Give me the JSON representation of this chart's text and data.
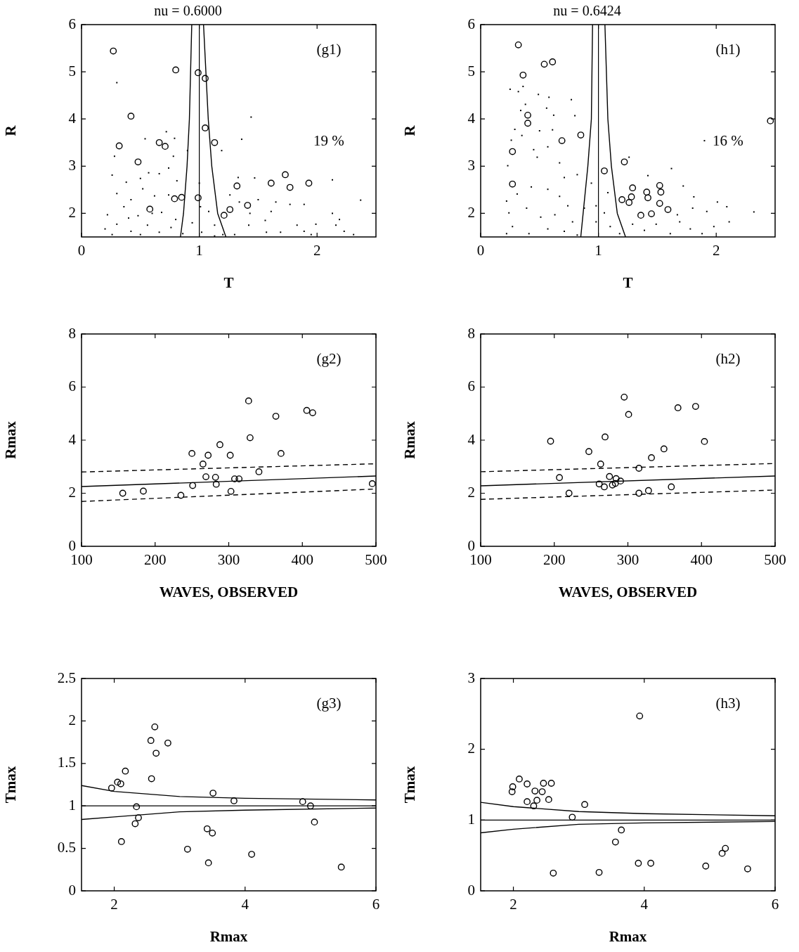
{
  "chart_data": [
    {
      "type": "scatter",
      "title": "nu = 0.6000",
      "xlabel": "T",
      "ylabel": "R",
      "xlim": [
        0,
        2.5
      ],
      "xticks": [
        0,
        1,
        2
      ],
      "ylim": [
        1.5,
        6
      ],
      "yticks": [
        2,
        3,
        4,
        5,
        6
      ],
      "annotations": [
        "(g1)",
        "19 %"
      ],
      "ref_lines": [
        {
          "axis": "x",
          "value": 1,
          "color": "#000000"
        }
      ],
      "series": [
        {
          "marker": "square",
          "color": "#000000",
          "x": [
            0.3,
            1.44,
            1.36,
            0.54,
            0.72,
            0.79,
            1.19,
            2.13,
            2.37,
            1.47,
            1.33,
            0.28,
            0.26,
            0.38,
            0.5,
            0.57,
            0.66,
            0.74,
            0.81,
            0.78,
            0.9,
            0.3,
            0.42,
            0.52,
            0.62,
            0.74,
            0.36,
            0.22,
            0.48,
            0.68,
            0.8,
            0.2,
            0.3,
            0.42,
            0.56,
            0.66,
            0.76,
            0.26,
            0.5,
            0.86,
            0.94,
            1.02,
            1.0,
            1.01,
            1.08,
            1.13,
            1.26,
            1.34,
            1.3,
            1.42,
            1.5,
            1.56,
            1.61,
            1.65,
            1.69,
            1.77,
            1.83,
            1.89,
            1.89,
            1.99,
            1.95,
            2.13,
            2.19,
            2.16,
            2.23,
            2.31,
            1.43,
            1.57,
            1.2,
            1.13,
            0.4,
            0.6
          ],
          "values": [
            4.77,
            4.04,
            3.57,
            3.58,
            3.73,
            3.59,
            3.33,
            2.71,
            2.28,
            2.75,
            2.76,
            3.21,
            2.81,
            2.66,
            2.74,
            2.86,
            2.84,
            2.96,
            2.69,
            3.21,
            3.33,
            2.42,
            2.29,
            2.52,
            2.37,
            2.39,
            2.14,
            1.97,
            1.95,
            2.02,
            1.87,
            1.67,
            1.77,
            1.62,
            1.75,
            1.6,
            1.7,
            1.55,
            1.55,
            1.57,
            1.8,
            1.6,
            2.64,
            2.14,
            2.04,
            1.75,
            2.39,
            2.24,
            1.55,
            1.75,
            2.29,
            1.85,
            2.04,
            2.24,
            1.6,
            2.19,
            1.75,
            2.19,
            1.62,
            1.77,
            1.55,
            2.0,
            1.87,
            1.75,
            1.62,
            1.55,
            2.0,
            1.6,
            1.55,
            1.52,
            1.9,
            2.0
          ]
        },
        {
          "marker": "circle",
          "color": "#000000",
          "x": [
            0.27,
            0.8,
            0.99,
            1.05,
            0.42,
            1.05,
            0.32,
            0.66,
            0.71,
            1.13,
            0.48,
            1.73,
            1.61,
            1.77,
            1.93,
            1.32,
            0.79,
            0.85,
            0.99,
            1.41,
            1.26,
            0.58,
            1.21
          ],
          "values": [
            5.44,
            5.04,
            4.98,
            4.86,
            4.06,
            3.81,
            3.43,
            3.5,
            3.42,
            3.5,
            3.09,
            2.82,
            2.64,
            2.55,
            2.64,
            2.58,
            2.31,
            2.34,
            2.33,
            2.17,
            2.08,
            2.09,
            1.96
          ]
        },
        {
          "type": "line",
          "marker": "none",
          "line_style": "solid",
          "color": "#000000",
          "x": [
            0.936,
            0.916,
            0.896,
            0.866,
            0.84
          ],
          "values": [
            6,
            4,
            3,
            2,
            1.5
          ]
        },
        {
          "type": "line",
          "marker": "none",
          "line_style": "solid",
          "color": "#000000",
          "x": [
            1.036,
            1.076,
            1.106,
            1.156,
            1.226
          ],
          "values": [
            6,
            4,
            3,
            2,
            1.5
          ]
        }
      ]
    },
    {
      "type": "scatter",
      "title": "nu = 0.6424",
      "xlabel": "T",
      "ylabel": "R",
      "xlim": [
        0,
        2.5
      ],
      "xticks": [
        0,
        1,
        2
      ],
      "ylim": [
        1.5,
        6
      ],
      "yticks": [
        2,
        3,
        4,
        5,
        6
      ],
      "annotations": [
        "(h1)",
        "16 %"
      ],
      "ref_lines": [
        {
          "axis": "x",
          "value": 1,
          "color": "#000000"
        }
      ],
      "series": [
        {
          "marker": "square",
          "color": "#000000",
          "x": [
            0.25,
            0.32,
            0.36,
            0.49,
            0.58,
            0.77,
            0.8,
            0.38,
            0.34,
            0.56,
            0.62,
            0.29,
            0.35,
            0.5,
            0.61,
            0.57,
            0.45,
            0.48,
            0.26,
            1.9,
            1.26,
            1.62,
            1.42,
            1.72,
            1.81,
            2.01,
            2.09,
            2.32,
            2.11,
            1.92,
            1.98,
            0.23,
            0.67,
            0.71,
            0.82,
            0.94,
            0.22,
            0.31,
            0.43,
            0.57,
            0.67,
            0.74,
            0.24,
            0.39,
            0.51,
            0.63,
            0.78,
            0.88,
            0.27,
            0.41,
            0.57,
            0.71,
            0.82,
            0.98,
            1.05,
            1.1,
            1.18,
            1.29,
            1.39,
            1.49,
            1.61,
            1.69,
            1.78,
            1.88,
            1.8,
            1.67,
            0.22,
            1.08,
            0.98
          ],
          "values": [
            4.63,
            4.58,
            4.69,
            4.52,
            4.46,
            4.41,
            4.07,
            4.31,
            4.18,
            4.23,
            4.08,
            3.78,
            3.65,
            3.75,
            3.77,
            3.41,
            3.35,
            3.19,
            3.55,
            3.54,
            3.19,
            2.95,
            2.8,
            2.58,
            2.35,
            2.24,
            2.14,
            2.03,
            1.82,
            2.04,
            1.72,
            3.01,
            3.07,
            2.76,
            2.82,
            2.64,
            2.26,
            2.41,
            2.56,
            2.51,
            2.36,
            2.16,
            2.01,
            2.11,
            1.92,
            1.97,
            1.82,
            2.11,
            1.72,
            1.57,
            1.67,
            1.62,
            1.54,
            1.82,
            2.01,
            1.72,
            1.57,
            1.77,
            1.64,
            1.77,
            1.57,
            1.82,
            1.67,
            1.57,
            2.11,
            1.97,
            1.57,
            2.44,
            2.16
          ]
        },
        {
          "marker": "circle",
          "color": "#000000",
          "x": [
            0.32,
            0.54,
            0.61,
            0.36,
            0.4,
            0.4,
            0.85,
            0.69,
            0.27,
            2.46,
            1.22,
            1.05,
            0.27,
            1.29,
            1.41,
            1.52,
            1.53,
            1.28,
            1.42,
            1.2,
            1.26,
            1.52,
            1.59,
            1.36,
            1.45
          ],
          "values": [
            5.57,
            5.16,
            5.21,
            4.93,
            4.08,
            3.91,
            3.66,
            3.54,
            3.31,
            3.96,
            3.09,
            2.9,
            2.62,
            2.54,
            2.45,
            2.59,
            2.45,
            2.35,
            2.33,
            2.29,
            2.23,
            2.21,
            2.08,
            1.96,
            1.99
          ]
        },
        {
          "type": "line",
          "marker": "none",
          "line_style": "solid",
          "color": "#000000",
          "x": [
            0.95,
            0.94,
            0.91,
            0.87,
            0.85
          ],
          "values": [
            6,
            4,
            3,
            2,
            1.5
          ]
        },
        {
          "type": "line",
          "marker": "none",
          "line_style": "solid",
          "color": "#000000",
          "x": [
            1.055,
            1.08,
            1.11,
            1.16,
            1.23
          ],
          "values": [
            6,
            4,
            3,
            2,
            1.5
          ]
        }
      ]
    },
    {
      "type": "scatter",
      "xlabel": "WAVES, OBSERVED",
      "ylabel": "Rmax",
      "xlim": [
        100,
        500
      ],
      "xticks": [
        100,
        200,
        300,
        400,
        500
      ],
      "ylim": [
        0,
        8
      ],
      "yticks": [
        0,
        2,
        4,
        6,
        8
      ],
      "annotations": [
        "(g2)"
      ],
      "series": [
        {
          "marker": "circle",
          "color": "#000000",
          "x": [
            156,
            184,
            235,
            250,
            251,
            265,
            272,
            269,
            282,
            283,
            288,
            302,
            303,
            308,
            314,
            327,
            329,
            341,
            364,
            371,
            406,
            414,
            495
          ],
          "values": [
            2.0,
            2.08,
            1.92,
            3.5,
            2.29,
            3.1,
            3.43,
            2.62,
            2.6,
            2.34,
            3.83,
            3.43,
            2.07,
            2.54,
            2.54,
            5.48,
            4.09,
            2.81,
            4.9,
            3.5,
            5.12,
            5.03,
            2.36
          ]
        },
        {
          "type": "line",
          "marker": "none",
          "line_style": "solid",
          "color": "#000000",
          "x": [
            100,
            500
          ],
          "values": [
            2.25,
            2.65
          ]
        },
        {
          "type": "line",
          "marker": "none",
          "line_style": "dashed",
          "color": "#000000",
          "x": [
            100,
            500
          ],
          "values": [
            2.8,
            3.11
          ]
        },
        {
          "type": "line",
          "marker": "none",
          "line_style": "dashed",
          "color": "#000000",
          "x": [
            100,
            500
          ],
          "values": [
            1.69,
            2.16
          ]
        }
      ]
    },
    {
      "type": "scatter",
      "xlabel": "WAVES, OBSERVED",
      "ylabel": "Rmax",
      "xlim": [
        100,
        500
      ],
      "xticks": [
        100,
        200,
        300,
        400,
        500
      ],
      "ylim": [
        0,
        8
      ],
      "yticks": [
        0,
        2,
        4,
        6,
        8
      ],
      "annotations": [
        "(h2)"
      ],
      "series": [
        {
          "marker": "circle",
          "color": "#000000",
          "x": [
            195,
            207,
            220,
            247,
            263,
            261,
            268,
            269,
            275,
            279,
            284,
            283,
            290,
            295,
            301,
            315,
            315,
            328,
            332,
            349,
            359,
            368,
            392,
            404
          ],
          "values": [
            3.96,
            2.59,
            2.0,
            3.57,
            3.1,
            2.35,
            2.24,
            4.12,
            2.63,
            2.31,
            2.55,
            2.37,
            2.46,
            5.62,
            4.97,
            2.94,
            2.0,
            2.1,
            3.34,
            3.67,
            2.24,
            5.22,
            5.27,
            3.95
          ]
        },
        {
          "type": "line",
          "marker": "none",
          "line_style": "solid",
          "color": "#000000",
          "x": [
            100,
            500
          ],
          "values": [
            2.28,
            2.65
          ]
        },
        {
          "type": "line",
          "marker": "none",
          "line_style": "dashed",
          "color": "#000000",
          "x": [
            100,
            500
          ],
          "values": [
            2.81,
            3.12
          ]
        },
        {
          "type": "line",
          "marker": "none",
          "line_style": "dashed",
          "color": "#000000",
          "x": [
            100,
            500
          ],
          "values": [
            1.77,
            2.12
          ]
        }
      ]
    },
    {
      "type": "scatter",
      "xlabel": "Rmax",
      "ylabel": "Tmax",
      "xlim": [
        1.5,
        6
      ],
      "xticks": [
        2,
        4,
        6
      ],
      "ylim": [
        0,
        2.5
      ],
      "yticks": [
        0,
        0.5,
        1,
        1.5,
        2,
        2.5
      ],
      "annotations": [
        "(g3)"
      ],
      "ref_lines": [
        {
          "axis": "y",
          "value": 1,
          "color": "#000000"
        }
      ],
      "series": [
        {
          "marker": "circle",
          "color": "#000000",
          "x": [
            1.96,
            2.05,
            2.1,
            2.17,
            2.11,
            2.32,
            2.37,
            2.34,
            2.56,
            2.62,
            2.64,
            2.57,
            2.82,
            3.12,
            3.42,
            3.5,
            3.44,
            3.51,
            3.83,
            4.1,
            4.88,
            5.0,
            5.06,
            5.47
          ],
          "values": [
            1.21,
            1.28,
            1.26,
            1.41,
            0.58,
            0.79,
            0.86,
            0.99,
            1.77,
            1.93,
            1.62,
            1.32,
            1.74,
            0.49,
            0.73,
            0.68,
            0.33,
            1.15,
            1.06,
            0.43,
            1.05,
            1.0,
            0.81,
            0.28
          ]
        },
        {
          "type": "line",
          "marker": "none",
          "line_style": "solid",
          "color": "#000000",
          "x": [
            1.5,
            2,
            3,
            4,
            6
          ],
          "values": [
            1.24,
            1.17,
            1.11,
            1.09,
            1.07
          ]
        },
        {
          "type": "line",
          "marker": "none",
          "line_style": "solid",
          "color": "#000000",
          "x": [
            1.5,
            2,
            3,
            4,
            6
          ],
          "values": [
            0.84,
            0.87,
            0.93,
            0.95,
            0.975
          ]
        }
      ]
    },
    {
      "type": "scatter",
      "xlabel": "Rmax",
      "ylabel": "Tmax",
      "xlim": [
        1.5,
        6
      ],
      "xticks": [
        2,
        4,
        6
      ],
      "ylim": [
        0,
        3
      ],
      "yticks": [
        0,
        1,
        2,
        3
      ],
      "annotations": [
        "(h3)"
      ],
      "ref_lines": [
        {
          "axis": "y",
          "value": 1,
          "color": "#000000"
        }
      ],
      "series": [
        {
          "marker": "circle",
          "color": "#000000",
          "x": [
            1.98,
            1.99,
            2.09,
            2.21,
            2.33,
            2.46,
            2.44,
            2.58,
            2.21,
            2.31,
            2.36,
            2.54,
            2.9,
            3.09,
            2.61,
            3.31,
            3.56,
            3.65,
            3.93,
            3.91,
            4.1,
            4.94,
            5.19,
            5.24,
            5.58
          ],
          "values": [
            1.4,
            1.47,
            1.58,
            1.51,
            1.41,
            1.52,
            1.4,
            1.52,
            1.26,
            1.2,
            1.28,
            1.29,
            1.04,
            1.22,
            0.25,
            0.26,
            0.69,
            0.86,
            2.47,
            0.39,
            0.39,
            0.35,
            0.53,
            0.6,
            0.31
          ]
        },
        {
          "type": "line",
          "marker": "none",
          "line_style": "solid",
          "color": "#000000",
          "x": [
            1.5,
            2,
            3,
            4,
            6
          ],
          "values": [
            1.25,
            1.19,
            1.12,
            1.09,
            1.06
          ]
        },
        {
          "type": "line",
          "marker": "none",
          "line_style": "solid",
          "color": "#000000",
          "x": [
            1.5,
            2,
            3,
            4,
            6
          ],
          "values": [
            0.82,
            0.87,
            0.94,
            0.96,
            0.98
          ]
        }
      ]
    }
  ]
}
